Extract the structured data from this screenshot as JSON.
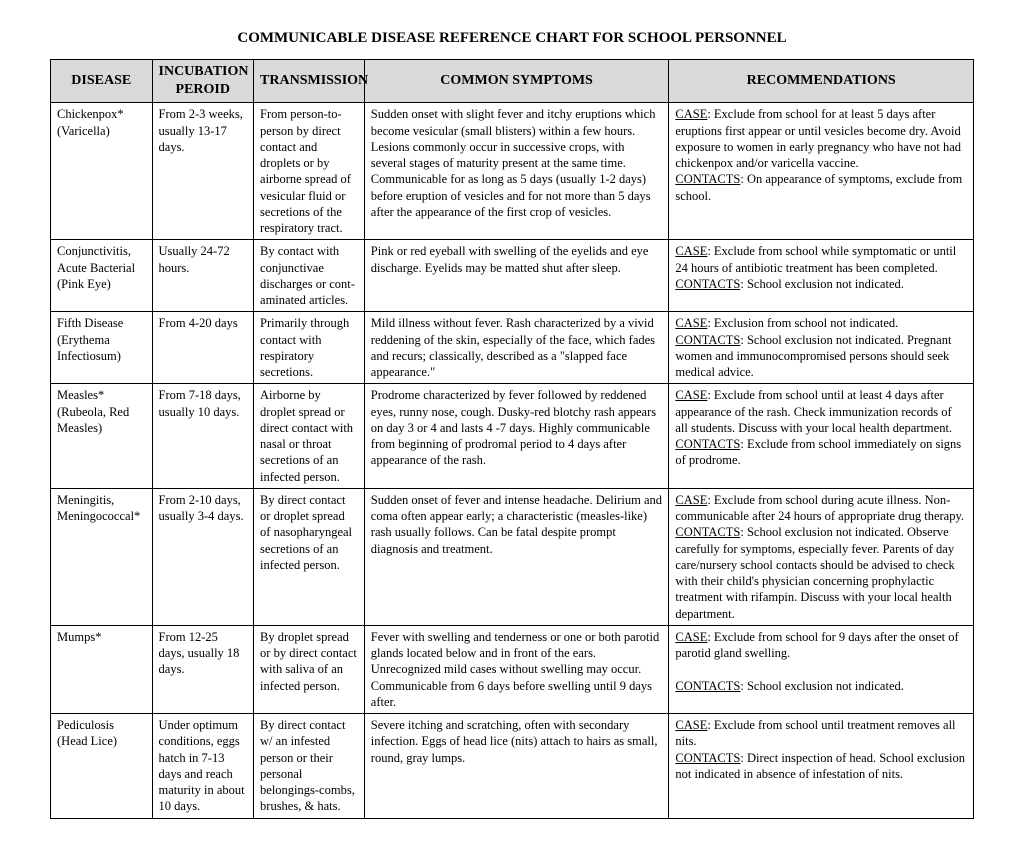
{
  "title": "COMMUNICABLE DISEASE REFERENCE CHART FOR SCHOOL PERSONNEL",
  "headers": {
    "c1": "DISEASE",
    "c2": "INCUBATION PEROID",
    "c3": "TRANSMISSION",
    "c4": "COMMON SYMPTOMS",
    "c5": "RECOMMENDATIONS"
  },
  "rows": [
    {
      "disease": "Chickenpox* (Varicella)",
      "incubation": "From 2-3 weeks, usually 13-17 days.",
      "transmission": "From person-to-person by direct contact and droplets or by airborne spread of vesicular fluid or secretions of the respiratory tract.",
      "symptoms": "Sudden onset with slight fever and itchy eruptions which become vesicular (small blisters) within a few hours.  Lesions commonly occur in successive crops, with several stages of maturity present at the same time.  Communicable for as long as 5 days (usually 1-2 days) before eruption of vesicles and for not more than 5 days after the appearance of the first crop of vesicles.",
      "rec_case": "Exclude from school for at least 5 days after eruptions first appear or until vesicles become dry.  Avoid exposure to women in early pregnancy who have not had chickenpox and/or varicella vaccine.",
      "rec_contacts": "On appearance of symptoms, exclude from school."
    },
    {
      "disease": "Conjunctivitis, Acute Bacterial (Pink Eye)",
      "incubation": "Usually 24-72 hours.",
      "transmission": "By contact with conjunctivae discharges or cont-aminated articles.",
      "symptoms": "Pink or red eyeball with swelling of the eyelids and eye discharge.  Eyelids may be matted shut after sleep.",
      "rec_case": "Exclude from school while symptomatic or until 24 hours of antibiotic treatment has been completed.",
      "rec_contacts": "School exclusion not indicated."
    },
    {
      "disease": "Fifth Disease (Erythema Infectiosum)",
      "incubation": "From 4-20 days",
      "transmission": "Primarily through contact with respiratory secretions.",
      "symptoms": "Mild illness without fever.  Rash characterized by a vivid reddening of the skin, especially of the face, which fades and recurs; classically, described as a \"slapped face appearance.\"",
      "rec_case": "Exclusion from school not indicated.",
      "rec_contacts": "School exclusion not indicated.  Pregnant women and immunocompromised persons should seek medical advice."
    },
    {
      "disease": "Measles* (Rubeola, Red Measles)",
      "incubation": "From 7-18 days, usually 10 days.",
      "transmission": "Airborne by droplet spread or direct contact with nasal or throat secretions of an infected person.",
      "symptoms": "Prodrome characterized by fever followed by reddened eyes, runny nose, cough.  Dusky-red blotchy rash appears on day 3 or 4 and lasts 4 -7 days.  Highly communicable from beginning of prodromal period to 4 days after appearance of the rash.",
      "rec_case": "Exclude from school until at least 4 days after appearance of the rash.  Check immunization records of all students.  Discuss with your local health department.",
      "rec_contacts": "Exclude from school immediately on signs of prodrome."
    },
    {
      "disease": "Meningitis, Meningococcal*",
      "incubation": "From 2-10 days, usually 3-4 days.",
      "transmission": "By direct contact or droplet spread of nasopharyngeal secretions of an infected person.",
      "symptoms": "Sudden onset of fever and intense headache.  Delirium and coma often appear early; a characteristic (measles-like) rash usually follows.  Can be fatal despite prompt diagnosis and treatment.",
      "rec_case": "Exclude from school during acute illness.  Non-communicable after 24 hours of appropriate drug therapy.",
      "rec_contacts": "School exclusion not indicated.  Observe carefully for symptoms, especially fever.  Parents of day care/nursery school contacts should be advised to check with their child's physician concerning prophylactic treatment with rifampin.  Discuss with your local health department."
    },
    {
      "disease": "Mumps*",
      "incubation": "From 12-25 days, usually 18 days.",
      "transmission": "By droplet spread or by direct contact with saliva of an infected person.",
      "symptoms": "Fever with swelling and tenderness or one or both parotid glands located below and in front of the ears.  Unrecognized mild cases without swelling may occur.  Communicable from 6 days before swelling until 9 days after.",
      "rec_case": "Exclude from school for 9 days after the onset of parotid gland swelling.",
      "rec_contacts": "School exclusion not indicated.",
      "rec_gap": true
    },
    {
      "disease": "Pediculosis (Head Lice)",
      "incubation": "Under optimum conditions, eggs hatch in 7-13 days and reach maturity in about 10 days.",
      "transmission": "By direct contact w/ an infested person or their personal belongings-combs, brushes, & hats.",
      "symptoms": "Severe itching and scratching, often with secondary infection.  Eggs of head lice (nits) attach to hairs as small, round, gray lumps.",
      "rec_case": "Exclude from school until treatment removes all nits.",
      "rec_contacts": "Direct inspection of head.  School exclusion not indicated in absence of infestation of nits."
    }
  ],
  "labels": {
    "case": "CASE",
    "contacts": "CONTACTS"
  }
}
